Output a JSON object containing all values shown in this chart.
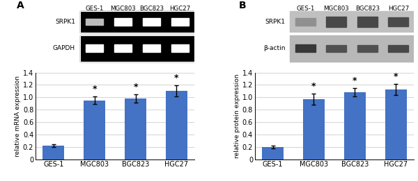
{
  "categories": [
    "GES-1",
    "MGC803",
    "BGC823",
    "HGC27"
  ],
  "panel_a": {
    "label": "A",
    "bar_values": [
      0.22,
      0.95,
      0.98,
      1.1
    ],
    "bar_errors": [
      0.025,
      0.06,
      0.07,
      0.09
    ],
    "ylabel": "relative mRNA expression",
    "ylim": [
      0,
      1.4
    ],
    "yticks": [
      0,
      0.2,
      0.4,
      0.6,
      0.8,
      1.0,
      1.2,
      1.4
    ],
    "significant": [
      false,
      true,
      true,
      true
    ],
    "gel_label1": "SRPK1",
    "gel_label2": "GAPDH",
    "cell_labels": [
      "GES-1",
      "MGC803",
      "BGC823",
      "HGC27"
    ],
    "bar_color": "#4472C4"
  },
  "panel_b": {
    "label": "B",
    "bar_values": [
      0.2,
      0.97,
      1.08,
      1.13
    ],
    "bar_errors": [
      0.02,
      0.09,
      0.07,
      0.09
    ],
    "ylabel": "relative protein expression",
    "ylim": [
      0,
      1.4
    ],
    "yticks": [
      0,
      0.2,
      0.4,
      0.6,
      0.8,
      1.0,
      1.2,
      1.4
    ],
    "significant": [
      false,
      true,
      true,
      true
    ],
    "gel_label1": "SRPK1",
    "gel_label2": "β-actin",
    "cell_labels": [
      "GES-1",
      "MGC803",
      "BGC823",
      "HGC27"
    ],
    "bar_color": "#4472C4"
  }
}
